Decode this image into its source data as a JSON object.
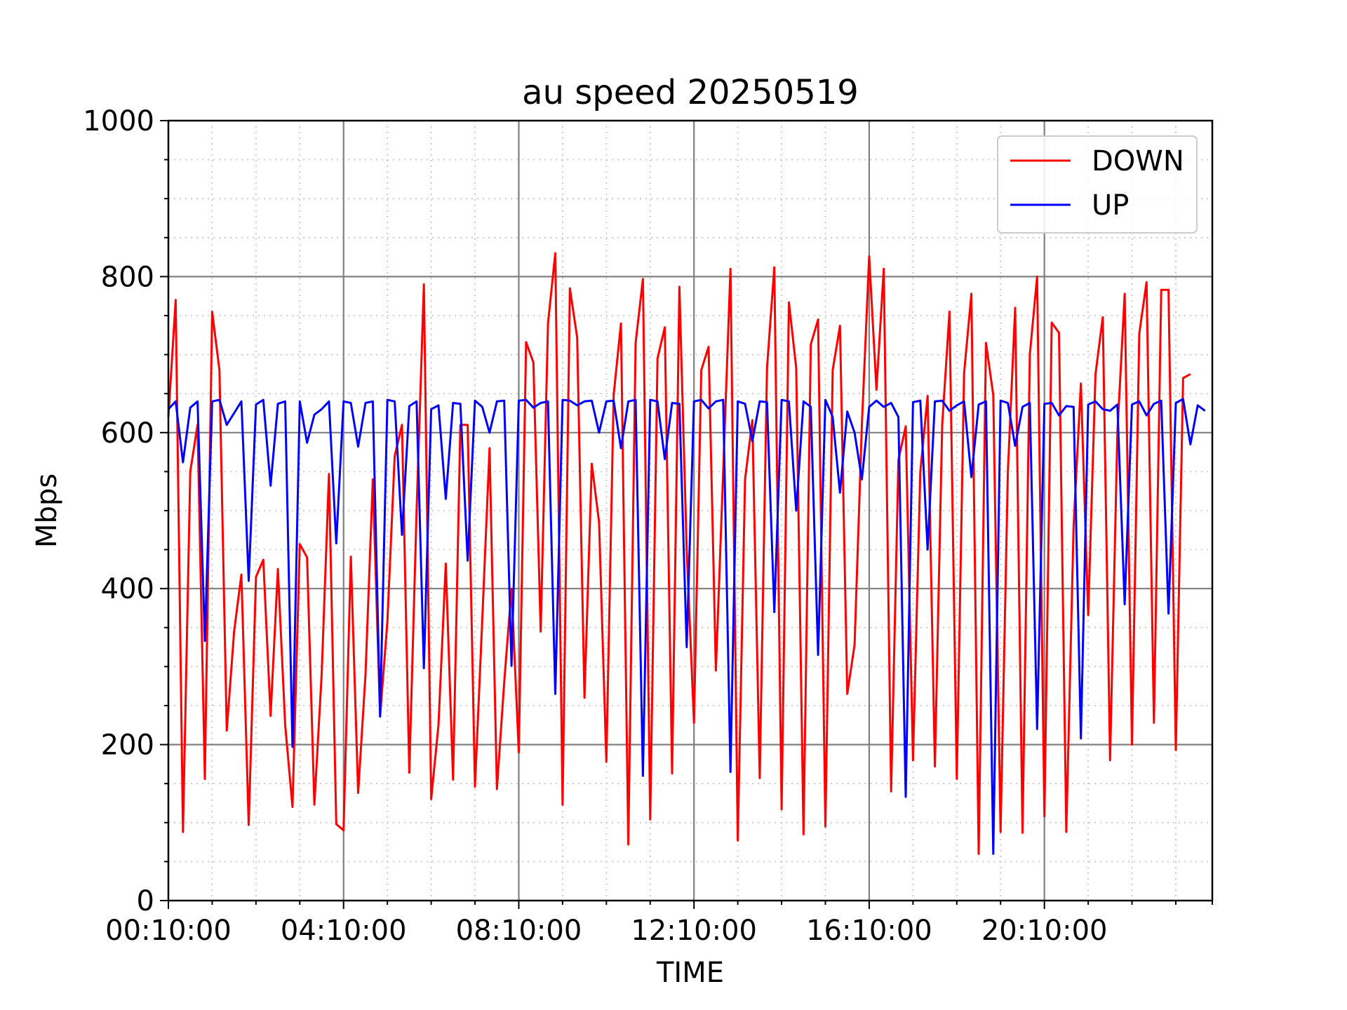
{
  "chart_data": {
    "type": "line",
    "title": "au speed 20250519",
    "xlabel": "TIME",
    "ylabel": "Mbps",
    "ylim": [
      0,
      1000
    ],
    "yticks": [
      0,
      200,
      400,
      600,
      800,
      1000
    ],
    "xlim": [
      "00:10:00",
      "24:00:00"
    ],
    "xticks": [
      "00:10:00",
      "04:10:00",
      "08:10:00",
      "12:10:00",
      "16:10:00",
      "20:10:00"
    ],
    "sample_interval_minutes": 10,
    "grid": "major solid gray, minor dotted",
    "legend": "top-right",
    "colors": {
      "DOWN": "#ff0000",
      "UP": "#0000ff"
    },
    "series": [
      {
        "name": "DOWN",
        "color": "#ff0000",
        "values": [
          620,
          770,
          88,
          550,
          610,
          156,
          755,
          680,
          218,
          345,
          418,
          97,
          415,
          437,
          237,
          425,
          225,
          120,
          457,
          440,
          123,
          290,
          547,
          98,
          90,
          441,
          138,
          290,
          540,
          237,
          358,
          570,
          610,
          164,
          500,
          790,
          130,
          225,
          432,
          155,
          610,
          610,
          146,
          360,
          580,
          143,
          280,
          400,
          190,
          716,
          690,
          345,
          740,
          830,
          123,
          785,
          722,
          260,
          560,
          485,
          178,
          648,
          740,
          72,
          715,
          797,
          104,
          695,
          735,
          163,
          787,
          450,
          228,
          680,
          710,
          295,
          550,
          810,
          77,
          540,
          616,
          157,
          683,
          812,
          117,
          767,
          683,
          85,
          713,
          745,
          95,
          680,
          737,
          265,
          328,
          610,
          826,
          655,
          810,
          140,
          565,
          608,
          180,
          550,
          647,
          172,
          610,
          755,
          156,
          676,
          778,
          60,
          715,
          648,
          88,
          550,
          760,
          87,
          700,
          800,
          108,
          741,
          728,
          88,
          480,
          663,
          366,
          675,
          748,
          180,
          600,
          778,
          200,
          727,
          793,
          228,
          783,
          783,
          193,
          670,
          675
        ]
      },
      {
        "name": "UP",
        "color": "#0000ff",
        "values": [
          630,
          640,
          562,
          632,
          640,
          333,
          640,
          642,
          610,
          625,
          640,
          410,
          636,
          642,
          532,
          637,
          640,
          197,
          640,
          587,
          623,
          630,
          640,
          458,
          640,
          638,
          582,
          638,
          640,
          236,
          642,
          640,
          469,
          634,
          640,
          298,
          630,
          635,
          515,
          638,
          637,
          436,
          641,
          633,
          600,
          640,
          641,
          301,
          641,
          642,
          632,
          638,
          640,
          265,
          642,
          641,
          635,
          640,
          641,
          600,
          640,
          641,
          580,
          640,
          642,
          160,
          642,
          640,
          566,
          638,
          637,
          325,
          640,
          642,
          631,
          640,
          642,
          165,
          640,
          637,
          589,
          640,
          639,
          370,
          642,
          640,
          500,
          640,
          633,
          315,
          642,
          620,
          523,
          627,
          600,
          540,
          633,
          641,
          633,
          638,
          620,
          133,
          639,
          641,
          450,
          640,
          641,
          628,
          635,
          640,
          543,
          636,
          640,
          60,
          641,
          638,
          583,
          633,
          638,
          220,
          637,
          638,
          622,
          634,
          633,
          208,
          636,
          640,
          630,
          628,
          636,
          380,
          636,
          640,
          622,
          637,
          641,
          368,
          638,
          643,
          585,
          635,
          628
        ]
      }
    ]
  }
}
